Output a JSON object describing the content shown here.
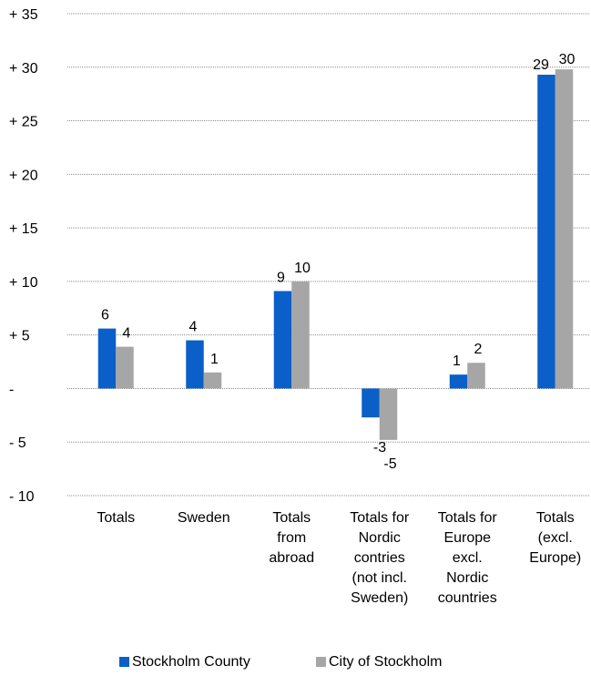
{
  "chart_data": {
    "type": "bar",
    "categories": [
      [
        "Totals"
      ],
      [
        "Sweden"
      ],
      [
        "Totals",
        "from",
        "abroad"
      ],
      [
        "Totals for",
        "Nordic",
        "contries",
        "(not incl.",
        "Sweden)"
      ],
      [
        "Totals for",
        "Europe",
        "excl.",
        "Nordic",
        "countries"
      ],
      [
        "Totals",
        "(excl.",
        "Europe)"
      ]
    ],
    "series": [
      {
        "name": "Stockholm County",
        "color": "#0a5fc8",
        "values": [
          5.6,
          4.5,
          9.1,
          -2.7,
          1.3,
          29.3
        ],
        "labels": [
          "6",
          "4",
          "9",
          "-3",
          "1",
          "29"
        ]
      },
      {
        "name": "City of Stockholm",
        "color": "#a6a6a6",
        "values": [
          3.9,
          1.5,
          10.0,
          -4.8,
          2.4,
          29.8
        ],
        "labels": [
          "4",
          "1",
          "10",
          "-5",
          "2",
          "30"
        ]
      }
    ],
    "ylim": [
      -10,
      35
    ],
    "yticks": [
      35,
      30,
      25,
      20,
      15,
      10,
      5,
      0,
      -5,
      -10
    ],
    "ytick_labels": [
      "+ 35",
      "+ 30",
      "+ 25",
      "+ 20",
      "+ 15",
      "+ 10",
      "+ 5",
      "-",
      "- 5",
      "- 10"
    ],
    "grid": true,
    "legend_position": "bottom"
  }
}
